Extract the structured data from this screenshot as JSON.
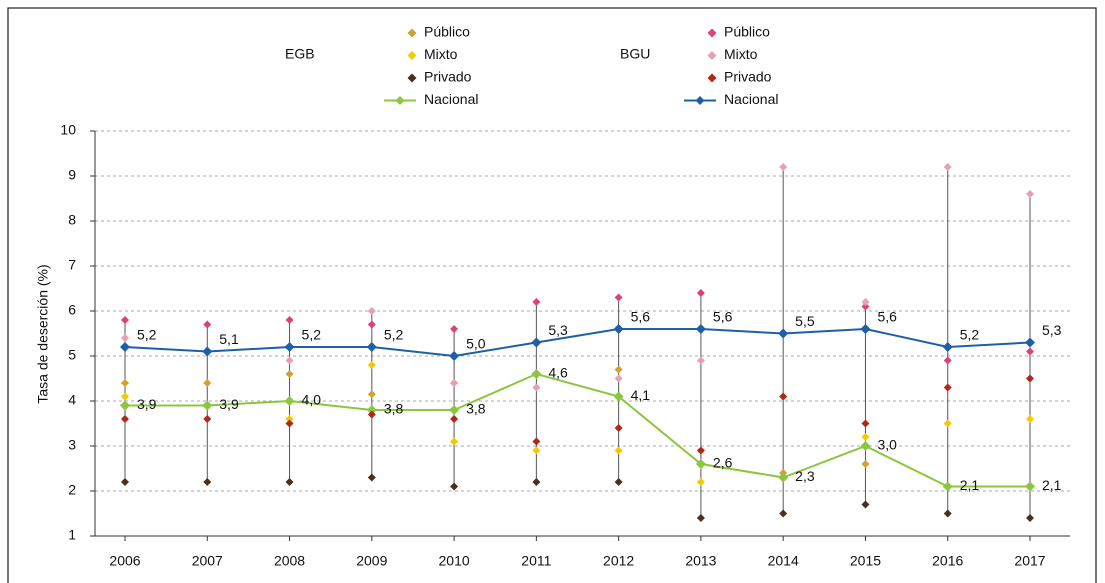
{
  "chart_data": {
    "type": "line",
    "y_label": "Tasa de deserción (%)",
    "categories": [
      "2006",
      "2007",
      "2008",
      "2009",
      "2010",
      "2011",
      "2012",
      "2013",
      "2014",
      "2015",
      "2016",
      "2017"
    ],
    "ylim": [
      1,
      10
    ],
    "yticks": [
      1,
      2,
      3,
      4,
      5,
      6,
      7,
      8,
      9,
      10
    ],
    "grid": true,
    "series": [
      {
        "group": "EGB",
        "name": "Público",
        "color": "#d4a030",
        "values": [
          4.4,
          4.4,
          4.6,
          4.15,
          4.4,
          5.3,
          4.7,
          2.9,
          2.4,
          2.6,
          2.1,
          2.1
        ]
      },
      {
        "group": "EGB",
        "name": "Mixto",
        "color": "#f5c800",
        "values": [
          4.1,
          3.9,
          3.6,
          4.8,
          3.1,
          2.9,
          2.9,
          2.2,
          4.1,
          3.2,
          3.5,
          3.6
        ]
      },
      {
        "group": "EGB",
        "name": "Privado",
        "color": "#4a3020",
        "values": [
          2.2,
          2.2,
          2.2,
          2.3,
          2.1,
          2.2,
          2.2,
          1.4,
          1.5,
          1.7,
          1.5,
          1.4
        ]
      },
      {
        "group": "EGB",
        "name": "Nacional",
        "color": "#8cc63f",
        "line": true,
        "values": [
          3.9,
          3.9,
          4.0,
          3.8,
          3.8,
          4.6,
          4.1,
          2.6,
          2.3,
          3.0,
          2.1,
          2.1
        ],
        "value_labels": [
          "3,9",
          "3,9",
          "4,0",
          "3,8",
          "3,8",
          "4,6",
          "4,1",
          "2,6",
          "2,3",
          "3,0",
          "2,1",
          "2,1"
        ]
      },
      {
        "group": "BGU",
        "name": "Público",
        "color": "#e0407a",
        "values": [
          5.8,
          5.7,
          5.8,
          5.7,
          5.6,
          6.2,
          6.3,
          6.4,
          5.5,
          6.1,
          4.9,
          5.1
        ]
      },
      {
        "group": "BGU",
        "name": "Mixto",
        "color": "#e8a0b0",
        "values": [
          5.4,
          5.1,
          4.9,
          6.0,
          4.4,
          4.3,
          4.5,
          4.9,
          9.2,
          6.2,
          9.2,
          8.6
        ]
      },
      {
        "group": "BGU",
        "name": "Privado",
        "color": "#b02818",
        "values": [
          3.6,
          3.6,
          3.5,
          3.7,
          3.6,
          3.1,
          3.4,
          2.9,
          4.1,
          3.5,
          4.3,
          4.5
        ]
      },
      {
        "group": "BGU",
        "name": "Nacional",
        "color": "#1f5fa8",
        "line": true,
        "values": [
          5.2,
          5.1,
          5.2,
          5.2,
          5.0,
          5.3,
          5.6,
          5.6,
          5.5,
          5.6,
          5.2,
          5.3
        ],
        "value_labels": [
          "5,2",
          "5,1",
          "5,2",
          "5,2",
          "5,0",
          "5,3",
          "5,6",
          "5,6",
          "5,5",
          "5,6",
          "5,2",
          "5,3"
        ]
      }
    ]
  }
}
